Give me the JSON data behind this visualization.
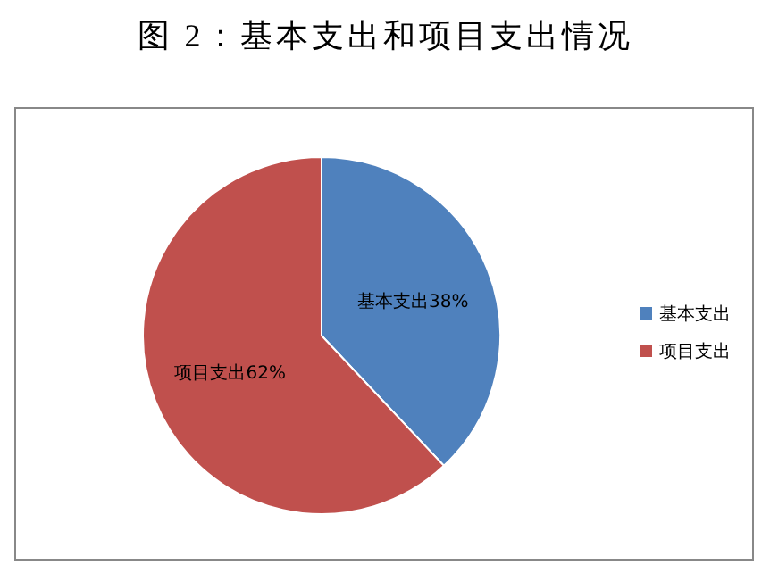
{
  "chart_data": {
    "type": "pie",
    "title": "图 2：基本支出和项目支出情况",
    "categories": [
      "基本支出",
      "项目支出"
    ],
    "values": [
      38,
      62
    ],
    "colors": [
      "#4f81bd",
      "#c0504d"
    ],
    "value_labels": [
      "基本支出38%",
      "项目支出62%"
    ],
    "legend": "right"
  }
}
